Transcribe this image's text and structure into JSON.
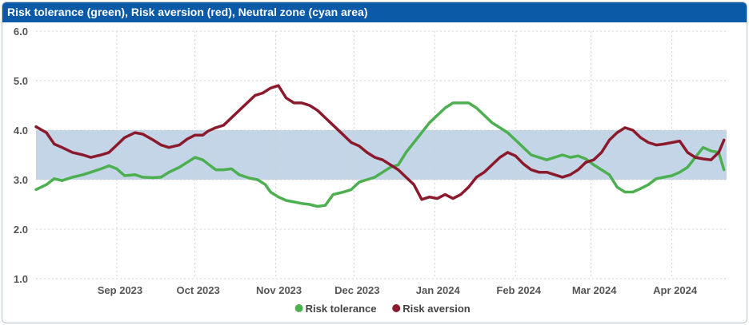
{
  "title": "Risk tolerance (green), Risk aversion (red), Neutral zone (cyan area)",
  "colors": {
    "header_bg": "#0a5aa7",
    "risk_tolerance": "#4caf50",
    "risk_aversion": "#8b1a2c",
    "neutral_zone": "#c3d5e6",
    "grid": "#d0d0d0"
  },
  "chart_data": {
    "type": "line",
    "title": "Risk tolerance (green), Risk aversion (red), Neutral zone (cyan area)",
    "xlabel": "",
    "ylabel": "",
    "ylim": [
      1.0,
      6.0
    ],
    "y_ticks": [
      "1.0",
      "2.0",
      "3.0",
      "4.0",
      "5.0",
      "6.0"
    ],
    "x_tick_labels": [
      "Sep 2023",
      "Oct 2023",
      "Nov 2023",
      "Dec 2023",
      "Jan 2024",
      "Feb 2024",
      "Mar 2024",
      "Apr 2024"
    ],
    "x_tick_dates": [
      "2023-09-01",
      "2023-10-01",
      "2023-11-01",
      "2023-12-01",
      "2024-01-01",
      "2024-02-01",
      "2024-03-01",
      "2024-04-01"
    ],
    "xlim": [
      "2023-08-01",
      "2024-04-22"
    ],
    "neutral_zone": [
      3.0,
      4.0
    ],
    "grid": true,
    "legend_position": "bottom",
    "series": [
      {
        "name": "Risk tolerance",
        "color": "#4caf50",
        "points": [
          [
            "2023-08-01",
            2.8
          ],
          [
            "2023-08-05",
            2.9
          ],
          [
            "2023-08-08",
            3.02
          ],
          [
            "2023-08-11",
            2.98
          ],
          [
            "2023-08-15",
            3.05
          ],
          [
            "2023-08-19",
            3.1
          ],
          [
            "2023-08-22",
            3.15
          ],
          [
            "2023-08-26",
            3.22
          ],
          [
            "2023-08-29",
            3.28
          ],
          [
            "2023-09-01",
            3.22
          ],
          [
            "2023-09-04",
            3.08
          ],
          [
            "2023-09-08",
            3.1
          ],
          [
            "2023-09-11",
            3.05
          ],
          [
            "2023-09-15",
            3.04
          ],
          [
            "2023-09-18",
            3.05
          ],
          [
            "2023-09-21",
            3.15
          ],
          [
            "2023-09-25",
            3.25
          ],
          [
            "2023-09-28",
            3.35
          ],
          [
            "2023-10-01",
            3.45
          ],
          [
            "2023-10-04",
            3.4
          ],
          [
            "2023-10-06",
            3.32
          ],
          [
            "2023-10-09",
            3.2
          ],
          [
            "2023-10-12",
            3.2
          ],
          [
            "2023-10-15",
            3.22
          ],
          [
            "2023-10-18",
            3.1
          ],
          [
            "2023-10-22",
            3.03
          ],
          [
            "2023-10-25",
            3.0
          ],
          [
            "2023-10-28",
            2.9
          ],
          [
            "2023-10-30",
            2.75
          ],
          [
            "2023-11-02",
            2.65
          ],
          [
            "2023-11-05",
            2.58
          ],
          [
            "2023-11-08",
            2.55
          ],
          [
            "2023-11-11",
            2.52
          ],
          [
            "2023-11-14",
            2.5
          ],
          [
            "2023-11-17",
            2.46
          ],
          [
            "2023-11-20",
            2.48
          ],
          [
            "2023-11-23",
            2.7
          ],
          [
            "2023-11-27",
            2.75
          ],
          [
            "2023-11-30",
            2.8
          ],
          [
            "2023-12-03",
            2.95
          ],
          [
            "2023-12-06",
            3.0
          ],
          [
            "2023-12-09",
            3.05
          ],
          [
            "2023-12-12",
            3.15
          ],
          [
            "2023-12-15",
            3.25
          ],
          [
            "2023-12-18",
            3.3
          ],
          [
            "2023-12-21",
            3.55
          ],
          [
            "2023-12-24",
            3.75
          ],
          [
            "2023-12-27",
            3.95
          ],
          [
            "2023-12-30",
            4.15
          ],
          [
            "2024-01-02",
            4.3
          ],
          [
            "2024-01-05",
            4.45
          ],
          [
            "2024-01-08",
            4.55
          ],
          [
            "2024-01-11",
            4.55
          ],
          [
            "2024-01-14",
            4.55
          ],
          [
            "2024-01-17",
            4.45
          ],
          [
            "2024-01-20",
            4.3
          ],
          [
            "2024-01-23",
            4.15
          ],
          [
            "2024-01-26",
            4.05
          ],
          [
            "2024-01-29",
            3.95
          ],
          [
            "2024-02-01",
            3.8
          ],
          [
            "2024-02-04",
            3.65
          ],
          [
            "2024-02-07",
            3.5
          ],
          [
            "2024-02-10",
            3.45
          ],
          [
            "2024-02-13",
            3.4
          ],
          [
            "2024-02-16",
            3.45
          ],
          [
            "2024-02-19",
            3.5
          ],
          [
            "2024-02-22",
            3.45
          ],
          [
            "2024-02-25",
            3.48
          ],
          [
            "2024-02-28",
            3.42
          ],
          [
            "2024-03-02",
            3.3
          ],
          [
            "2024-03-05",
            3.2
          ],
          [
            "2024-03-08",
            3.1
          ],
          [
            "2024-03-11",
            2.85
          ],
          [
            "2024-03-14",
            2.75
          ],
          [
            "2024-03-17",
            2.75
          ],
          [
            "2024-03-20",
            2.82
          ],
          [
            "2024-03-23",
            2.9
          ],
          [
            "2024-03-26",
            3.02
          ],
          [
            "2024-03-29",
            3.05
          ],
          [
            "2024-04-01",
            3.08
          ],
          [
            "2024-04-04",
            3.15
          ],
          [
            "2024-04-07",
            3.25
          ],
          [
            "2024-04-10",
            3.45
          ],
          [
            "2024-04-13",
            3.65
          ],
          [
            "2024-04-16",
            3.58
          ],
          [
            "2024-04-19",
            3.55
          ],
          [
            "2024-04-21",
            3.2
          ]
        ]
      },
      {
        "name": "Risk aversion",
        "color": "#8b1a2c",
        "points": [
          [
            "2023-08-01",
            4.07
          ],
          [
            "2023-08-05",
            3.95
          ],
          [
            "2023-08-08",
            3.72
          ],
          [
            "2023-08-11",
            3.65
          ],
          [
            "2023-08-15",
            3.55
          ],
          [
            "2023-08-19",
            3.5
          ],
          [
            "2023-08-22",
            3.45
          ],
          [
            "2023-08-26",
            3.5
          ],
          [
            "2023-08-29",
            3.55
          ],
          [
            "2023-09-01",
            3.7
          ],
          [
            "2023-09-04",
            3.85
          ],
          [
            "2023-09-08",
            3.95
          ],
          [
            "2023-09-11",
            3.92
          ],
          [
            "2023-09-15",
            3.8
          ],
          [
            "2023-09-18",
            3.7
          ],
          [
            "2023-09-21",
            3.65
          ],
          [
            "2023-09-25",
            3.7
          ],
          [
            "2023-09-28",
            3.82
          ],
          [
            "2023-10-01",
            3.9
          ],
          [
            "2023-10-04",
            3.9
          ],
          [
            "2023-10-06",
            3.98
          ],
          [
            "2023-10-09",
            4.05
          ],
          [
            "2023-10-12",
            4.1
          ],
          [
            "2023-10-15",
            4.25
          ],
          [
            "2023-10-18",
            4.4
          ],
          [
            "2023-10-21",
            4.55
          ],
          [
            "2023-10-24",
            4.7
          ],
          [
            "2023-10-27",
            4.75
          ],
          [
            "2023-10-30",
            4.85
          ],
          [
            "2023-11-02",
            4.9
          ],
          [
            "2023-11-05",
            4.65
          ],
          [
            "2023-11-08",
            4.55
          ],
          [
            "2023-11-11",
            4.55
          ],
          [
            "2023-11-14",
            4.5
          ],
          [
            "2023-11-17",
            4.4
          ],
          [
            "2023-11-20",
            4.25
          ],
          [
            "2023-11-23",
            4.1
          ],
          [
            "2023-11-27",
            3.9
          ],
          [
            "2023-11-30",
            3.75
          ],
          [
            "2023-12-03",
            3.68
          ],
          [
            "2023-12-06",
            3.55
          ],
          [
            "2023-12-09",
            3.45
          ],
          [
            "2023-12-12",
            3.4
          ],
          [
            "2023-12-15",
            3.3
          ],
          [
            "2023-12-18",
            3.2
          ],
          [
            "2023-12-21",
            3.05
          ],
          [
            "2023-12-24",
            2.9
          ],
          [
            "2023-12-27",
            2.6
          ],
          [
            "2023-12-30",
            2.65
          ],
          [
            "2024-01-02",
            2.62
          ],
          [
            "2024-01-05",
            2.7
          ],
          [
            "2024-01-08",
            2.62
          ],
          [
            "2024-01-11",
            2.7
          ],
          [
            "2024-01-14",
            2.85
          ],
          [
            "2024-01-17",
            3.05
          ],
          [
            "2024-01-20",
            3.15
          ],
          [
            "2024-01-23",
            3.3
          ],
          [
            "2024-01-26",
            3.45
          ],
          [
            "2024-01-29",
            3.55
          ],
          [
            "2024-02-01",
            3.48
          ],
          [
            "2024-02-04",
            3.32
          ],
          [
            "2024-02-07",
            3.2
          ],
          [
            "2024-02-10",
            3.15
          ],
          [
            "2024-02-13",
            3.15
          ],
          [
            "2024-02-16",
            3.1
          ],
          [
            "2024-02-19",
            3.05
          ],
          [
            "2024-02-22",
            3.1
          ],
          [
            "2024-02-25",
            3.2
          ],
          [
            "2024-02-28",
            3.35
          ],
          [
            "2024-03-02",
            3.4
          ],
          [
            "2024-03-05",
            3.55
          ],
          [
            "2024-03-08",
            3.8
          ],
          [
            "2024-03-11",
            3.95
          ],
          [
            "2024-03-14",
            4.05
          ],
          [
            "2024-03-17",
            4.0
          ],
          [
            "2024-03-20",
            3.85
          ],
          [
            "2024-03-23",
            3.75
          ],
          [
            "2024-03-26",
            3.7
          ],
          [
            "2024-03-29",
            3.72
          ],
          [
            "2024-04-01",
            3.75
          ],
          [
            "2024-04-04",
            3.78
          ],
          [
            "2024-04-07",
            3.55
          ],
          [
            "2024-04-10",
            3.45
          ],
          [
            "2024-04-13",
            3.42
          ],
          [
            "2024-04-16",
            3.4
          ],
          [
            "2024-04-19",
            3.55
          ],
          [
            "2024-04-21",
            3.8
          ]
        ]
      }
    ]
  }
}
